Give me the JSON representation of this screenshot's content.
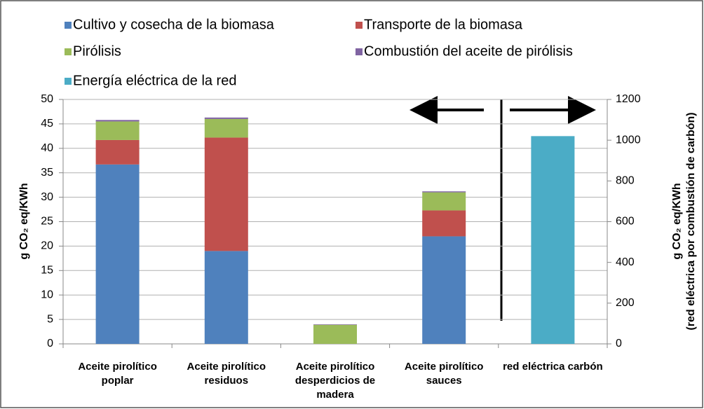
{
  "chart_data": {
    "type": "stacked_bar",
    "categories": [
      "Aceite pirolítico poplar",
      "Aceite pirolítico residuos",
      "Aceite pirolítico desperdicios de madera",
      "Aceite pirolítico sauces",
      "red eléctrica carbón"
    ],
    "series": [
      {
        "name": "Cultivo y cosecha de la biomasa",
        "color": "#4f81bd",
        "values": [
          36.7,
          19,
          0,
          22,
          null
        ]
      },
      {
        "name": "Transporte de la biomasa",
        "color": "#c0504d",
        "values": [
          5,
          23.2,
          0,
          5.3,
          null
        ]
      },
      {
        "name": "Pirólisis",
        "color": "#9bbb59",
        "values": [
          3.8,
          3.8,
          3.9,
          3.7,
          null
        ]
      },
      {
        "name": "Combustión del aceite de pirólisis",
        "color": "#8064a2",
        "values": [
          0.3,
          0.3,
          0.1,
          0.2,
          null
        ]
      },
      {
        "name": "Energía eléctrica de la red",
        "color": "#4bacc6",
        "axis": "y2",
        "values": [
          null,
          null,
          null,
          null,
          1020
        ]
      }
    ],
    "ylabel": "g CO₂ eq/KWh",
    "y2label": [
      "g CO₂ eq/KWh",
      "(red eléctrica por combustión de carbón)"
    ],
    "ylim": [
      0,
      50
    ],
    "yticks": [
      0,
      5,
      10,
      15,
      20,
      25,
      30,
      35,
      40,
      45,
      50
    ],
    "y2lim": [
      0,
      1200
    ],
    "y2ticks": [
      0,
      200,
      400,
      600,
      800,
      1000,
      1200
    ],
    "grid": true
  }
}
